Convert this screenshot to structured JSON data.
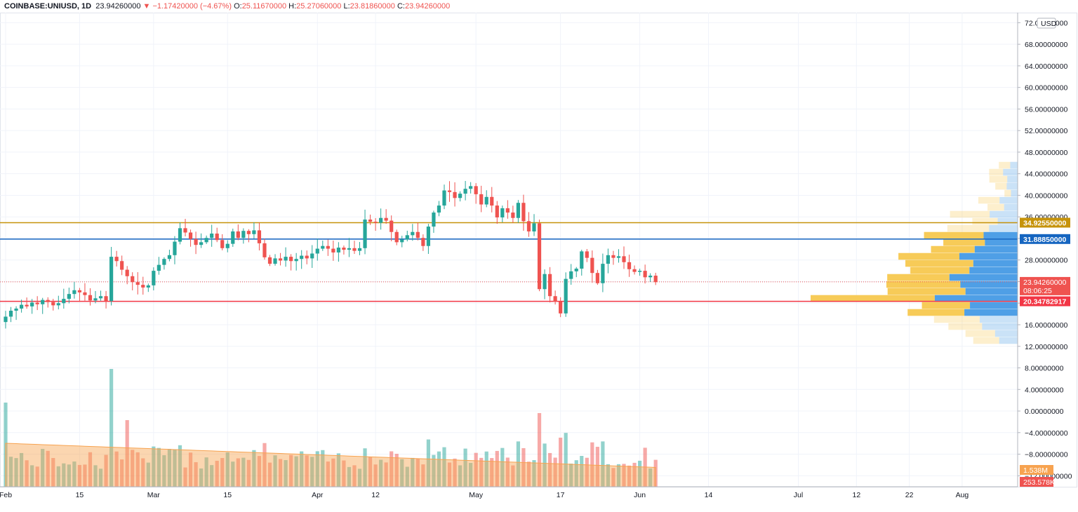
{
  "header": {
    "symbol": "COINBASE:UNIUSD, 1D",
    "last": "23.94260000",
    "arrow": "▼",
    "change": "−1.17420000 (−4.67%)",
    "o_label": "O:",
    "o_value": "25.11670000",
    "h_label": "H:",
    "h_value": "25.27060000",
    "l_label": "L:",
    "l_value": "23.81860000",
    "c_label": "C:",
    "c_value": "23.94260000"
  },
  "chart_data": {
    "type": "candlestick",
    "currency_badge": "USD",
    "y_price_ticks": [
      "72.00000000",
      "68.00000000",
      "64.00000000",
      "60.00000000",
      "56.00000000",
      "52.00000000",
      "48.00000000",
      "44.00000000",
      "40.00000000",
      "36.00000000",
      "32.00000000",
      "28.00000000",
      "24.00000000",
      "20.00000000",
      "16.00000000",
      "12.00000000",
      "8.00000000",
      "4.00000000",
      "0.00000000",
      "−4.00000000",
      "−8.00000000",
      "−12.00000000"
    ],
    "x_ticks": [
      {
        "label": "Feb",
        "day": 0
      },
      {
        "label": "15",
        "day": 14
      },
      {
        "label": "Mar",
        "day": 28
      },
      {
        "label": "15",
        "day": 42
      },
      {
        "label": "Apr",
        "day": 59
      },
      {
        "label": "12",
        "day": 70
      },
      {
        "label": "May",
        "day": 89
      },
      {
        "label": "17",
        "day": 105
      },
      {
        "label": "Jun",
        "day": 120
      },
      {
        "label": "14",
        "day": 133
      },
      {
        "label": "Jul",
        "day": 150
      },
      {
        "label": "12",
        "day": 161
      },
      {
        "label": "22",
        "day": 171
      },
      {
        "label": "Aug",
        "day": 181
      }
    ],
    "horizontal_lines": [
      {
        "price": 34.9255,
        "label": "34.92550000",
        "color": "#c6930a"
      },
      {
        "price": 31.8885,
        "label": "31.88850000",
        "color": "#1565c0"
      },
      {
        "price": 20.34782917,
        "label": "20.34782917",
        "color": "#f23645"
      }
    ],
    "last_price": {
      "price": 23.9426,
      "label": "23.94260000",
      "countdown": "08:06:25",
      "color": "#ef5350"
    },
    "volume_labels": [
      {
        "label": "1.538M",
        "color": "#f7a350"
      },
      {
        "label": "253.578K",
        "color": "#ef5350"
      }
    ],
    "closes": [
      17.5,
      18.6,
      19.0,
      19.7,
      19.4,
      20.1,
      19.8,
      20.6,
      20.2,
      19.6,
      20.0,
      20.8,
      21.7,
      22.4,
      22.0,
      21.5,
      20.5,
      20.9,
      21.3,
      20.4,
      28.6,
      27.8,
      26.2,
      25.0,
      23.9,
      23.4,
      22.9,
      23.3,
      26.0,
      27.1,
      28.2,
      28.9,
      31.4,
      33.9,
      33.1,
      31.9,
      30.8,
      31.3,
      32.1,
      32.9,
      31.7,
      30.2,
      31.0,
      33.3,
      32.1,
      33.4,
      32.8,
      33.5,
      31.1,
      28.5,
      27.3,
      28.3,
      27.9,
      28.6,
      27.8,
      28.2,
      28.8,
      28.3,
      29.2,
      30.1,
      30.6,
      30.1,
      29.4,
      30.3,
      29.9,
      30.2,
      29.7,
      30.2,
      35.5,
      35.1,
      34.9,
      35.8,
      35.3,
      33.2,
      31.3,
      31.8,
      32.6,
      33.2,
      32.1,
      30.6,
      34.2,
      36.8,
      38.1,
      40.9,
      40.6,
      39.5,
      40.3,
      41.2,
      41.7,
      40.2,
      38.3,
      39.7,
      38.1,
      35.9,
      37.6,
      36.8,
      35.8,
      38.6,
      35.2,
      33.3,
      34.8,
      22.6,
      25.4,
      21.3,
      20.3,
      18.1,
      24.5,
      25.9,
      26.4,
      29.6,
      28.4,
      25.6,
      23.7,
      27.3,
      28.9,
      28.4,
      28.7,
      27.6,
      26.3,
      25.8,
      26.0,
      24.8,
      25.1,
      23.9
    ]
  }
}
